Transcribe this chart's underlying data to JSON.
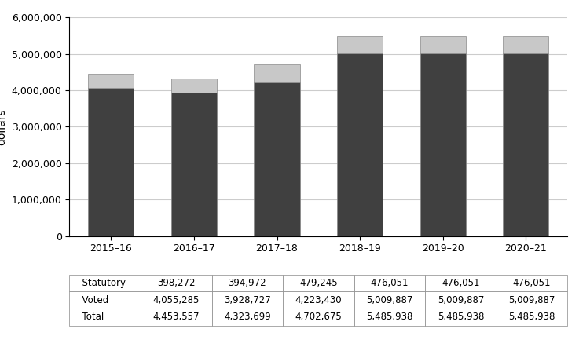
{
  "years": [
    "2015–16",
    "2016–17",
    "2017–18",
    "2018–19",
    "2019–20",
    "2020–21"
  ],
  "statutory": [
    398272,
    394972,
    479245,
    476051,
    476051,
    476051
  ],
  "voted": [
    4055285,
    3928727,
    4223430,
    5009887,
    5009887,
    5009887
  ],
  "total": [
    4453557,
    4323699,
    4702675,
    5485938,
    5485938,
    5485938
  ],
  "statutory_color": "#c8c8c8",
  "voted_color": "#404040",
  "bar_edge_color": "#888888",
  "ylabel": "dollars",
  "ylim": [
    0,
    6000000
  ],
  "yticks": [
    0,
    1000000,
    2000000,
    3000000,
    4000000,
    5000000,
    6000000
  ],
  "legend_labels": [
    "Statutory",
    "Voted"
  ],
  "table_rows": [
    "Statutory",
    "Voted",
    "Total"
  ],
  "background_color": "#ffffff",
  "grid_color": "#cccccc",
  "bar_width": 0.55
}
